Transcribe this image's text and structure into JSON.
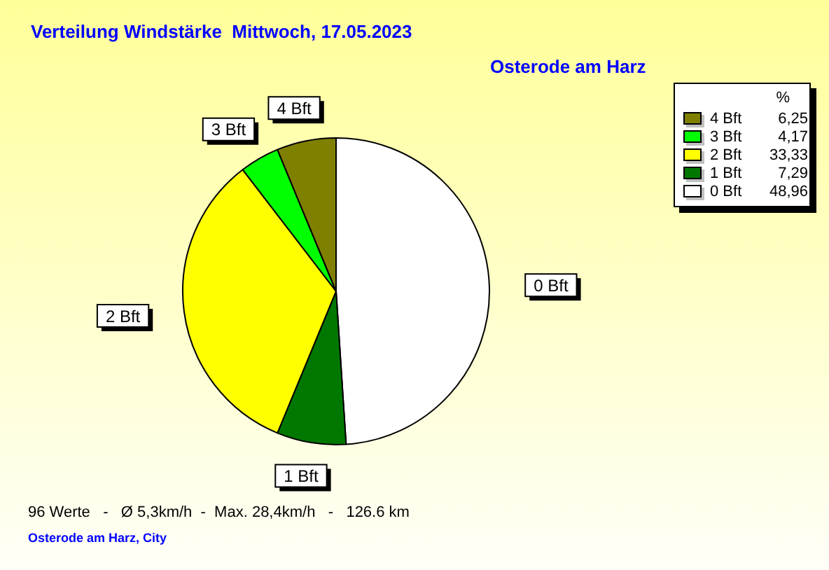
{
  "chart_data": {
    "type": "pie",
    "title": "Verteilung Windstärke  Mittwoch, 17.05.2023",
    "subtitle": "Osterode am Harz",
    "legend_title": "%",
    "categories": [
      "4 Bft",
      "3 Bft",
      "2 Bft",
      "1 Bft",
      "0 Bft"
    ],
    "values": [
      6.25,
      4.17,
      33.33,
      7.29,
      48.96
    ],
    "value_labels": [
      "6,25",
      "4,17",
      "33,33",
      "7,29",
      "48,96"
    ],
    "colors": [
      "#808000",
      "#00ff00",
      "#ffff00",
      "#007800",
      "#ffffff"
    ],
    "legend": "top right",
    "annotations": [
      "96 Werte   -   Ø 5,3km/h  -  Max. 28,4km/h   -   126.6 km",
      "Osterode am Harz, City"
    ]
  }
}
